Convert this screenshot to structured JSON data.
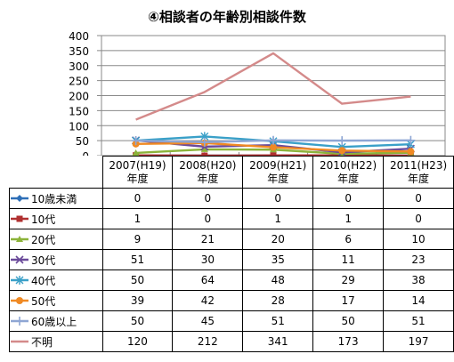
{
  "chart_data": {
    "type": "line",
    "title": "④相談者の年齢別相談件数",
    "ylim": [
      0,
      400
    ],
    "yticks": [
      "0",
      "50",
      "100",
      "150",
      "200",
      "250",
      "300",
      "350",
      "400"
    ],
    "grid": true,
    "categories": [
      [
        "2007(H19)",
        "年度"
      ],
      [
        "2008(H20)",
        "年度"
      ],
      [
        "2009(H21)",
        "年度"
      ],
      [
        "2010(H22)",
        "年度"
      ],
      [
        "2011(H23)",
        "年度"
      ]
    ],
    "series": [
      {
        "name": "10歳未満",
        "values": [
          0,
          0,
          0,
          0,
          0
        ],
        "color": "#2e6fb7",
        "marker": "diamond"
      },
      {
        "name": "10代",
        "values": [
          1,
          0,
          1,
          1,
          0
        ],
        "color": "#b03030",
        "marker": "square"
      },
      {
        "name": "20代",
        "values": [
          9,
          21,
          20,
          6,
          10
        ],
        "color": "#8cb33a",
        "marker": "triangle"
      },
      {
        "name": "30代",
        "values": [
          51,
          30,
          35,
          11,
          23
        ],
        "color": "#6a4a9a",
        "marker": "x"
      },
      {
        "name": "40代",
        "values": [
          50,
          64,
          48,
          29,
          38
        ],
        "color": "#3aa0c8",
        "marker": "star"
      },
      {
        "name": "50代",
        "values": [
          39,
          42,
          28,
          17,
          14
        ],
        "color": "#f08a24",
        "marker": "circle"
      },
      {
        "name": "60歳以上",
        "values": [
          50,
          45,
          51,
          50,
          51
        ],
        "color": "#8ea6d4",
        "marker": "plus"
      },
      {
        "name": "不明",
        "values": [
          120,
          212,
          341,
          173,
          197
        ],
        "color": "#d48a8a",
        "marker": "none"
      }
    ]
  }
}
